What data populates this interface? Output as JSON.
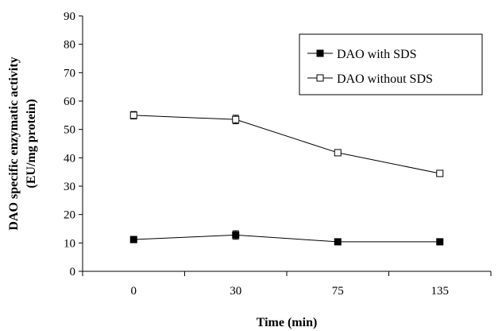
{
  "chart_data": {
    "type": "line",
    "categories": [
      "0",
      "30",
      "75",
      "135"
    ],
    "xlabel": "Time (min)",
    "ylabel_lines": [
      "DAO specific enzymatic activity",
      "(EU/mg protein)"
    ],
    "ylim": [
      0,
      90
    ],
    "yticks": [
      0,
      10,
      20,
      30,
      40,
      50,
      60,
      70,
      80,
      90
    ],
    "grid": false,
    "legend_position": "top-right",
    "series": [
      {
        "name": "DAO with SDS",
        "marker": "filled-square",
        "values": [
          11.2,
          12.8,
          10.4,
          10.4
        ],
        "errors": [
          0.7,
          1.5,
          0.6,
          0.6
        ]
      },
      {
        "name": "DAO without SDS",
        "marker": "open-square",
        "values": [
          55.0,
          53.5,
          41.8,
          34.5
        ],
        "errors": [
          1.3,
          1.5,
          0.8,
          0.5
        ]
      }
    ]
  }
}
